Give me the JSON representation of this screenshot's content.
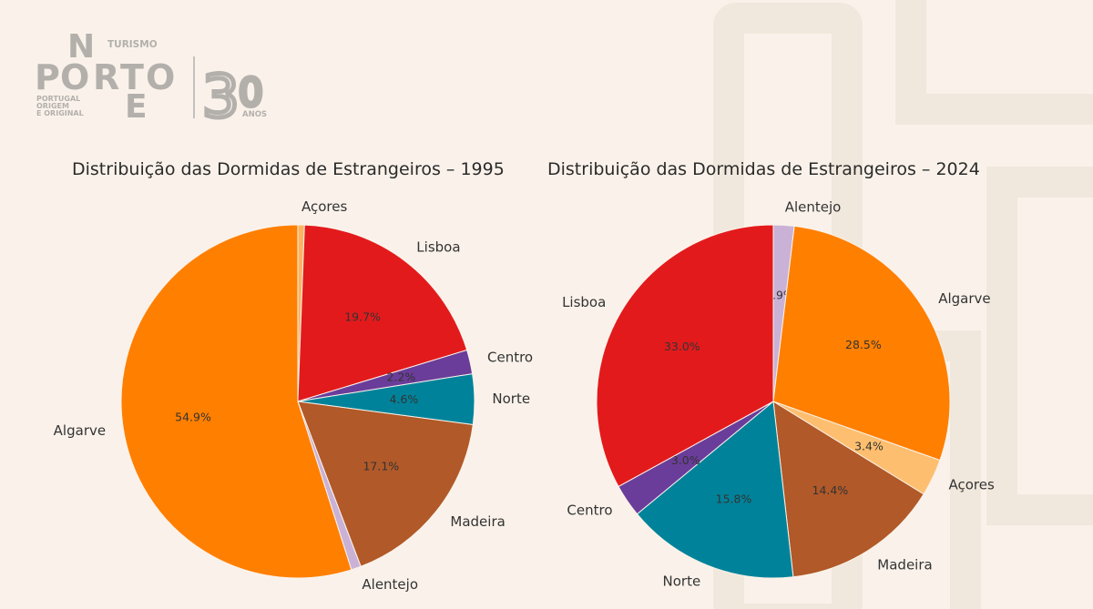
{
  "logo": {
    "brand_letters": [
      "N",
      "P",
      "O",
      "R",
      "T",
      "O",
      "E"
    ],
    "turismo": "TURISMO",
    "tagline": [
      "PORTUGAL",
      "ORIGEM",
      "E ORIGINAL"
    ],
    "anniversary_digits": [
      "3",
      "0"
    ],
    "anniversary_word": "ANOS",
    "color": "#b3b0ac"
  },
  "chart_data": [
    {
      "type": "pie",
      "title": "Distribuição das Dormidas de Estrangeiros – 1995",
      "start_angle_deg": 90,
      "direction": "clockwise",
      "slices": [
        {
          "label": "Açores",
          "value": 0.6,
          "pct_text": "",
          "color": "#fdb462"
        },
        {
          "label": "Lisboa",
          "value": 19.7,
          "pct_text": "19.7%",
          "color": "#e31a1c"
        },
        {
          "label": "Centro",
          "value": 2.2,
          "pct_text": "2.2%",
          "color": "#6a3d9a"
        },
        {
          "label": "Norte",
          "value": 4.6,
          "pct_text": "4.6%",
          "color": "#00839a"
        },
        {
          "label": "Madeira",
          "value": 17.1,
          "pct_text": "17.1%",
          "color": "#b15928"
        },
        {
          "label": "Alentejo",
          "value": 0.9,
          "pct_text": "",
          "color": "#cab2d6"
        },
        {
          "label": "Algarve",
          "value": 54.9,
          "pct_text": "54.9%",
          "color": "#ff7f00"
        }
      ]
    },
    {
      "type": "pie",
      "title": "Distribuição das Dormidas de Estrangeiros – 2024",
      "start_angle_deg": 90,
      "direction": "clockwise",
      "slices": [
        {
          "label": "Alentejo",
          "value": 1.9,
          "pct_text": "1.9%",
          "color": "#cab2d6"
        },
        {
          "label": "Algarve",
          "value": 28.5,
          "pct_text": "28.5%",
          "color": "#ff7f00"
        },
        {
          "label": "Açores",
          "value": 3.4,
          "pct_text": "3.4%",
          "color": "#fdbf6f"
        },
        {
          "label": "Madeira",
          "value": 14.4,
          "pct_text": "14.4%",
          "color": "#b15928"
        },
        {
          "label": "Norte",
          "value": 15.8,
          "pct_text": "15.8%",
          "color": "#00839a"
        },
        {
          "label": "Centro",
          "value": 3.0,
          "pct_text": "3.0%",
          "color": "#6a3d9a"
        },
        {
          "label": "Lisboa",
          "value": 33.0,
          "pct_text": "33.0%",
          "color": "#e31a1c"
        }
      ]
    }
  ]
}
